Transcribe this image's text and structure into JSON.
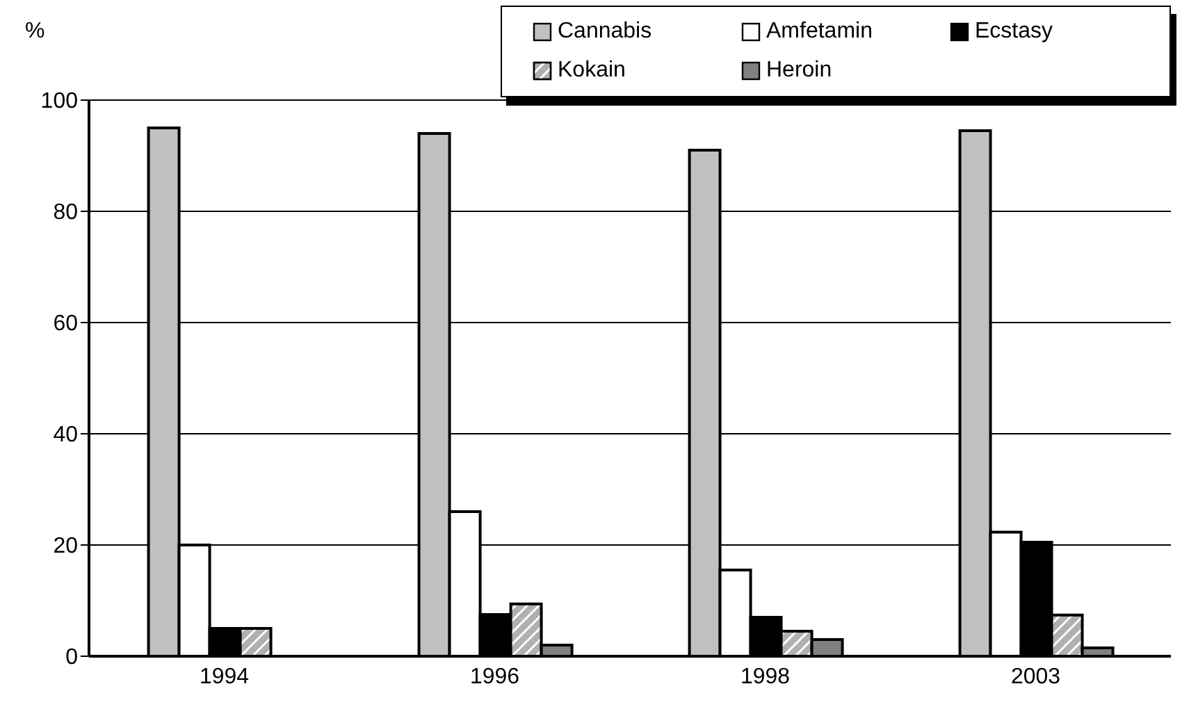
{
  "chart_data": {
    "type": "bar",
    "ylabel": "%",
    "categories": [
      "1994",
      "1996",
      "1998",
      "2003"
    ],
    "series": [
      {
        "name": "Cannabis",
        "color": "#c0c0c0",
        "values": [
          95,
          94,
          91,
          94.5
        ]
      },
      {
        "name": "Amfetamin",
        "color": "#ffffff",
        "values": [
          20,
          26,
          15.5,
          22.3
        ]
      },
      {
        "name": "Ecstasy",
        "color": "#000000",
        "values": [
          5,
          7.5,
          7,
          20.5
        ]
      },
      {
        "name": "Kokain",
        "color": "#b0b0b0",
        "values": [
          5,
          9.4,
          4.5,
          7.4
        ]
      },
      {
        "name": "Heroin",
        "color": "#808080",
        "values": [
          null,
          2,
          3,
          1.5
        ]
      }
    ],
    "ylim": [
      0,
      100
    ],
    "yticks": [
      0,
      20,
      40,
      60,
      80,
      100
    ],
    "grid": "y",
    "legend": "top right"
  }
}
